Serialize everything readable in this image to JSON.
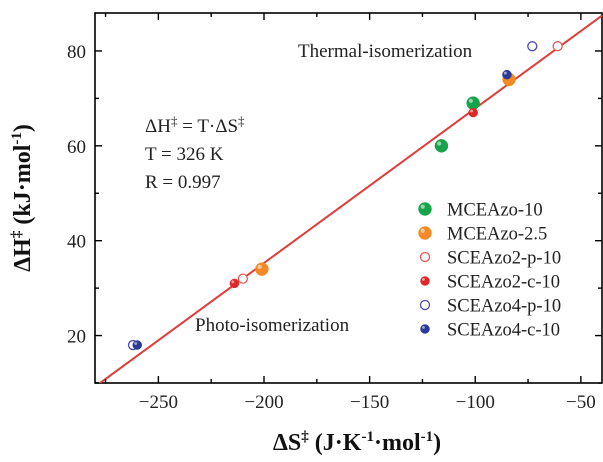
{
  "chart_data": {
    "type": "scatter",
    "xlim": [
      -280,
      -40
    ],
    "ylim": [
      10,
      88
    ],
    "x_ticks": [
      -250,
      -200,
      -150,
      -100,
      -50
    ],
    "y_ticks": [
      20,
      40,
      60,
      80
    ],
    "xlabel": {
      "prefix": "ΔS",
      "sup": "‡",
      "unit_open": " (J·K",
      "unit_sup1": "-1",
      "unit_mid": "·mol",
      "unit_sup2": "-1",
      "unit_close": ")"
    },
    "ylabel": {
      "prefix": "ΔH",
      "sup": "‡",
      "unit_open": " (kJ·mol",
      "unit_sup": "-1",
      "unit_close": ")"
    },
    "annotations": {
      "thermal": "Thermal-isomerization",
      "photo": "Photo-isomerization",
      "equation": {
        "lhs": "ΔH",
        "lhs_sup": "‡",
        "mid": " = T·ΔS",
        "rhs_sup": "‡"
      },
      "temperature": "T = 326 K",
      "r_value": "R = 0.997"
    },
    "fit_line": {
      "color": "#e03c3c",
      "slope": 0.326,
      "intercept": 100.5
    },
    "legend_position": "right",
    "series": [
      {
        "name": "MCEAzo-10",
        "style": "filled",
        "color": "#17a34a",
        "points": [
          [
            -101,
            69
          ],
          [
            -116,
            60
          ]
        ]
      },
      {
        "name": "MCEAzo-2.5",
        "style": "filled",
        "color": "#f28a25",
        "points": [
          [
            -84,
            74
          ],
          [
            -201,
            34
          ]
        ]
      },
      {
        "name": "SCEAzo2-p-10",
        "style": "open",
        "color": "#e85a5a",
        "points": [
          [
            -61,
            81
          ],
          [
            -210,
            32
          ]
        ]
      },
      {
        "name": "SCEAzo2-c-10",
        "style": "filled",
        "color": "#e02828",
        "points": [
          [
            -101,
            67
          ],
          [
            -214,
            31
          ]
        ]
      },
      {
        "name": "SCEAzo4-p-10",
        "style": "open",
        "color": "#4a4ab0",
        "points": [
          [
            -73,
            81
          ],
          [
            -262,
            18
          ]
        ]
      },
      {
        "name": "SCEAzo4-c-10",
        "style": "filled",
        "color": "#2a3a9a",
        "points": [
          [
            -85,
            75
          ],
          [
            -260,
            18
          ]
        ]
      }
    ]
  }
}
